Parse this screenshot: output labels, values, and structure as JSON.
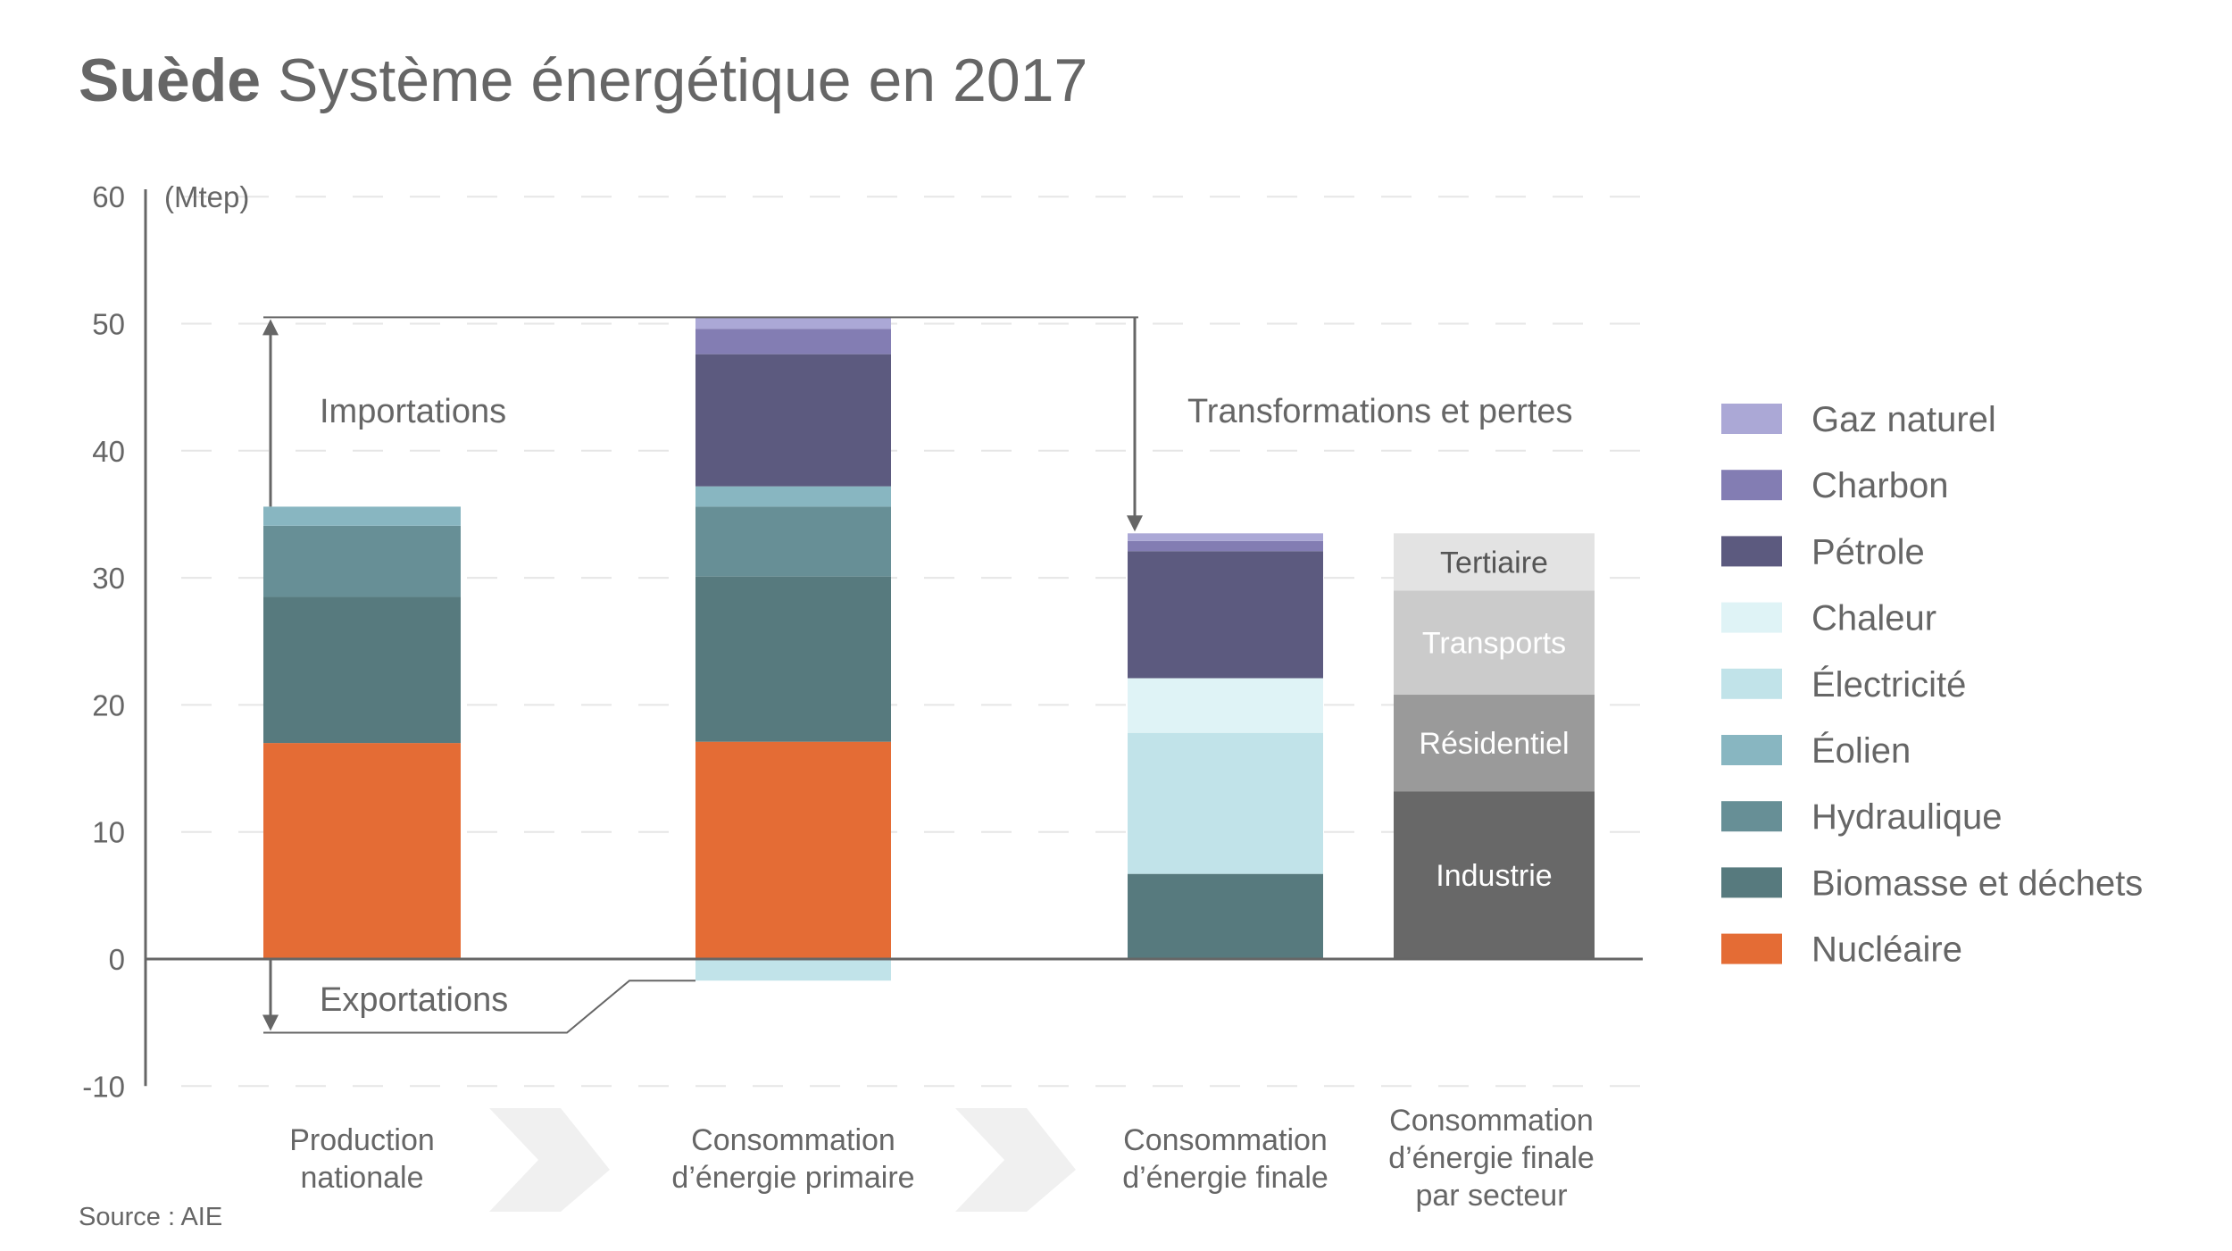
{
  "title": {
    "bold": "Suède",
    "rest": " Système énergétique en 2017"
  },
  "source": "Source : AIE",
  "chart_data": {
    "type": "bar",
    "stacked": true,
    "title": "Suède Système énergétique en 2017",
    "ylabel": "(Mtep)",
    "xlabel": "",
    "ylim": [
      -10,
      60
    ],
    "yticks": [
      60,
      50,
      40,
      30,
      20,
      10,
      0,
      -10
    ],
    "grid": true,
    "legend_position": "right",
    "categories": [
      [
        "Production",
        "nationale"
      ],
      [
        "Consommation",
        "d’énergie primaire"
      ],
      [
        "Consommation",
        "d’énergie finale"
      ],
      [
        "Consommation",
        "d’énergie finale",
        "par secteur"
      ]
    ],
    "series": [
      {
        "name": "Nucléaire",
        "color": "#E46C35",
        "values": [
          17.0,
          17.1,
          0,
          null
        ]
      },
      {
        "name": "Biomasse et déchets",
        "color": "#577A7E",
        "values": [
          11.5,
          13.0,
          6.7,
          null
        ]
      },
      {
        "name": "Hydraulique",
        "color": "#678F96",
        "values": [
          5.6,
          5.5,
          0,
          null
        ]
      },
      {
        "name": "Éolien",
        "color": "#88B6C1",
        "values": [
          1.5,
          1.6,
          0,
          null
        ]
      },
      {
        "name": "Électricité",
        "color": "#C1E3E9",
        "values": [
          0,
          -1.7,
          11.1,
          null
        ]
      },
      {
        "name": "Chaleur",
        "color": "#DFF3F6",
        "values": [
          0,
          0,
          4.3,
          null
        ]
      },
      {
        "name": "Pétrole",
        "color": "#5C5A7F",
        "values": [
          0,
          10.4,
          10.0,
          null
        ]
      },
      {
        "name": "Charbon",
        "color": "#837DB3",
        "values": [
          0,
          2.0,
          0.8,
          null
        ]
      },
      {
        "name": "Gaz naturel",
        "color": "#ABA8D6",
        "values": [
          0,
          0.9,
          0.6,
          null
        ]
      }
    ],
    "sectors": [
      {
        "name": "Industrie",
        "color": "#686868",
        "text_color": "#ffffff",
        "value": 13.2
      },
      {
        "name": "Résidentiel",
        "color": "#9A9A9A",
        "text_color": "#ffffff",
        "value": 7.6
      },
      {
        "name": "Transports",
        "color": "#CBCBCB",
        "text_color": "#ffffff",
        "value": 8.2
      },
      {
        "name": "Tertiaire",
        "color": "#E3E3E3",
        "text_color": "#555555",
        "value": 4.5
      }
    ],
    "legend": [
      "Gaz naturel",
      "Charbon",
      "Pétrole",
      "Chaleur",
      "Électricité",
      "Éolien",
      "Hydraulique",
      "Biomasse et déchets",
      "Nucléaire"
    ],
    "annotations": {
      "imports": {
        "label": "Importations",
        "from": 35.6,
        "to": 50.5
      },
      "exports": {
        "label": "Exportations",
        "from": 0,
        "to": -5.8
      },
      "transformations": {
        "label": "Transformations et pertes",
        "from": 50.5,
        "to": 33.5
      }
    }
  }
}
